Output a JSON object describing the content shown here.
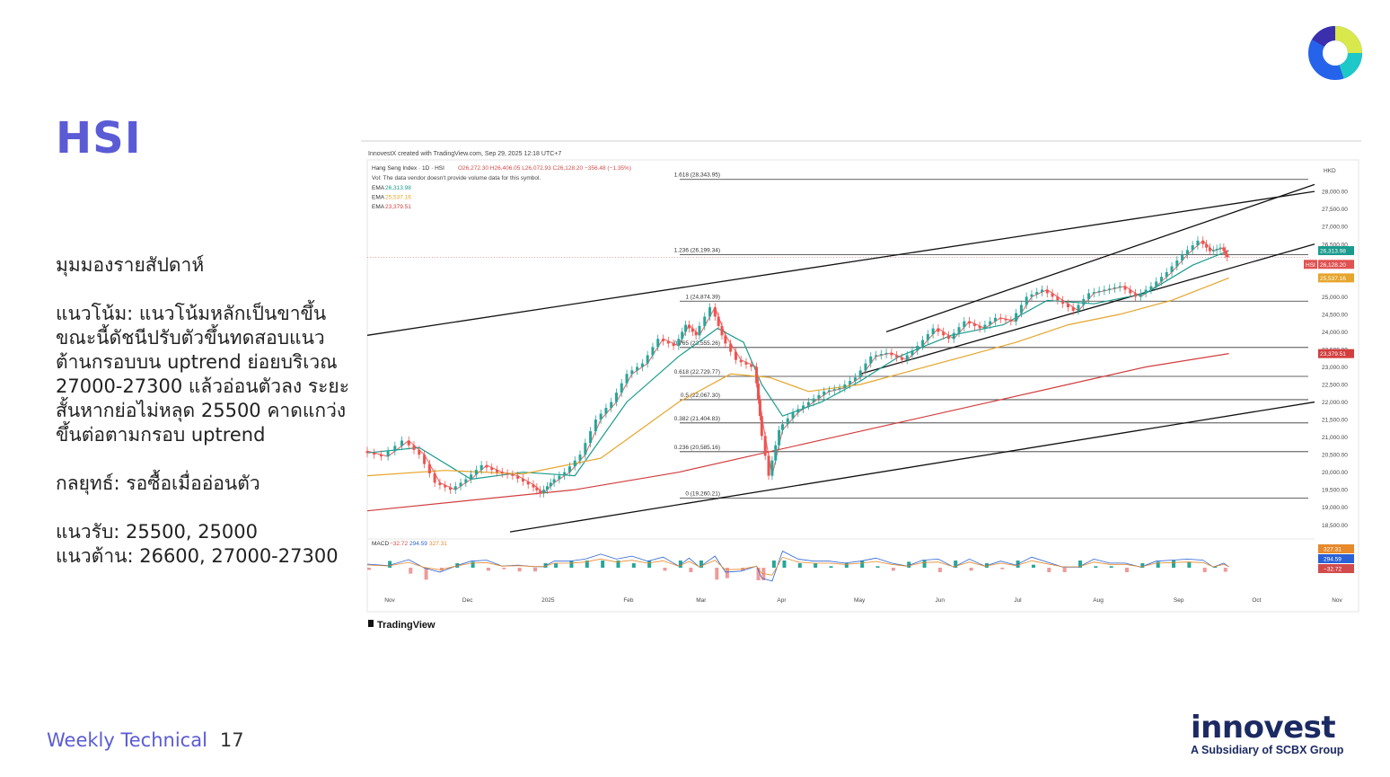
{
  "slide": {
    "title": "HSI",
    "commentary": {
      "heading": "มุมมองรายสัปดาห์",
      "trend": "แนวโน้ม: แนวโน้มหลักเป็นขาขึ้น ขณะนี้ดัชนีปรับตัวขึ้นทดสอบแนวต้านกรอบบน uptrend ย่อยบริเวณ 27000-27300 แล้วอ่อนตัวลง ระยะสั้นหากย่อไม่หลุด 25500 คาดแกว่งขึ้นต่อตามกรอบ uptrend",
      "strategy": "กลยุทธ์: รอซื้อเมื่ออ่อนตัว",
      "support": "แนวรับ: 25500, 25000",
      "resistance": "แนวต้าน: 26600, 27000-27300"
    },
    "footer": {
      "section": "Weekly Technical",
      "page": "17"
    },
    "brand": {
      "name": "innovest",
      "subtitle": "A Subsidiary of SCBX Group"
    }
  },
  "chart_data": {
    "type": "line",
    "header": "InnovestX created with TradingView.com, Sep 29, 2025 12:18 UTC+7",
    "legend_line": "Hang Seng Index · 1D · HSI",
    "ohlc": "O26,272.30 H26,406.05 L26,072.93 C26,128.20 −356.48 (−1.35%)",
    "vol_note": "Vol: The data vendor doesn't provide volume data for this symbol.",
    "currency": "HKD",
    "watermark": "TradingView",
    "ylim": [
      18200,
      28900
    ],
    "y_ticks": [
      "28,000.00",
      "27,500.00",
      "27,000.00",
      "26,500.00",
      "26,000.00",
      "25,500.00",
      "25,000.00",
      "24,500.00",
      "24,000.00",
      "23,500.00",
      "23,000.00",
      "22,500.00",
      "22,000.00",
      "21,500.00",
      "21,000.00",
      "20,500.00",
      "20,000.00",
      "19,500.00",
      "19,000.00",
      "18,500.00"
    ],
    "x_ticks": [
      "Nov",
      "Dec",
      "2025",
      "Feb",
      "Mar",
      "Apr",
      "May",
      "Jun",
      "Jul",
      "Aug",
      "Sep",
      "Oct",
      "Nov"
    ],
    "x_tick_days": [
      0,
      30,
      61,
      92,
      120,
      151,
      181,
      212,
      242,
      273,
      304,
      334,
      365
    ],
    "last_day": 332,
    "series": [
      {
        "name": "HSI",
        "role": "price",
        "last_label": "26,128.20",
        "color": "#e05252",
        "points": [
          [
            0,
            20600
          ],
          [
            8,
            20450
          ],
          [
            16,
            20900
          ],
          [
            22,
            20500
          ],
          [
            28,
            19700
          ],
          [
            34,
            19500
          ],
          [
            40,
            19800
          ],
          [
            46,
            20200
          ],
          [
            52,
            20000
          ],
          [
            58,
            19900
          ],
          [
            64,
            19650
          ],
          [
            68,
            19400
          ],
          [
            72,
            19700
          ],
          [
            78,
            20000
          ],
          [
            84,
            20500
          ],
          [
            90,
            21500
          ],
          [
            96,
            22000
          ],
          [
            102,
            22800
          ],
          [
            108,
            23100
          ],
          [
            114,
            23800
          ],
          [
            120,
            23600
          ],
          [
            124,
            24200
          ],
          [
            128,
            23900
          ],
          [
            134,
            24700
          ],
          [
            138,
            23900
          ],
          [
            144,
            23200
          ],
          [
            150,
            23000
          ],
          [
            152,
            21600
          ],
          [
            156,
            19900
          ],
          [
            160,
            21200
          ],
          [
            166,
            21700
          ],
          [
            172,
            22000
          ],
          [
            178,
            22300
          ],
          [
            184,
            22400
          ],
          [
            190,
            22700
          ],
          [
            196,
            23300
          ],
          [
            202,
            23400
          ],
          [
            208,
            23200
          ],
          [
            214,
            23600
          ],
          [
            220,
            24100
          ],
          [
            226,
            23800
          ],
          [
            232,
            24300
          ],
          [
            238,
            24100
          ],
          [
            244,
            24400
          ],
          [
            250,
            24300
          ],
          [
            256,
            25000
          ],
          [
            262,
            25200
          ],
          [
            268,
            24900
          ],
          [
            274,
            24600
          ],
          [
            280,
            25100
          ],
          [
            286,
            25200
          ],
          [
            292,
            25300
          ],
          [
            298,
            25000
          ],
          [
            304,
            25300
          ],
          [
            310,
            25700
          ],
          [
            316,
            26200
          ],
          [
            322,
            26600
          ],
          [
            326,
            26300
          ],
          [
            330,
            26400
          ],
          [
            332,
            26128
          ]
        ]
      },
      {
        "name": "EMA",
        "role": "ema-fast",
        "value": "26,313.98",
        "color": "#1a9b8e",
        "points": [
          [
            0,
            20550
          ],
          [
            20,
            20700
          ],
          [
            40,
            19800
          ],
          [
            60,
            20000
          ],
          [
            80,
            19900
          ],
          [
            100,
            22000
          ],
          [
            120,
            23300
          ],
          [
            135,
            24100
          ],
          [
            145,
            23700
          ],
          [
            152,
            22500
          ],
          [
            160,
            21600
          ],
          [
            175,
            22000
          ],
          [
            190,
            22600
          ],
          [
            205,
            23300
          ],
          [
            225,
            23900
          ],
          [
            245,
            24200
          ],
          [
            262,
            24900
          ],
          [
            280,
            24800
          ],
          [
            300,
            25100
          ],
          [
            318,
            25900
          ],
          [
            332,
            26314
          ]
        ]
      },
      {
        "name": "EMA",
        "role": "ema-mid",
        "value": "25,537.16",
        "color": "#e6a52c",
        "points": [
          [
            0,
            19900
          ],
          [
            30,
            20050
          ],
          [
            60,
            19950
          ],
          [
            90,
            20400
          ],
          [
            120,
            22000
          ],
          [
            140,
            22800
          ],
          [
            155,
            22700
          ],
          [
            170,
            22300
          ],
          [
            190,
            22500
          ],
          [
            210,
            22900
          ],
          [
            230,
            23300
          ],
          [
            250,
            23700
          ],
          [
            270,
            24200
          ],
          [
            290,
            24500
          ],
          [
            310,
            24900
          ],
          [
            332,
            25537
          ]
        ]
      },
      {
        "name": "EMA",
        "role": "ema-slow",
        "value": "23,379.51",
        "color": "#d23e3e",
        "points": [
          [
            0,
            18900
          ],
          [
            40,
            19200
          ],
          [
            80,
            19500
          ],
          [
            120,
            20000
          ],
          [
            150,
            20500
          ],
          [
            180,
            21000
          ],
          [
            210,
            21500
          ],
          [
            240,
            22000
          ],
          [
            270,
            22500
          ],
          [
            300,
            23000
          ],
          [
            332,
            23380
          ]
        ]
      }
    ],
    "fib_levels": [
      {
        "label": "1.618 (28,343.95)",
        "value": 28344
      },
      {
        "label": "1.236 (26,199.34)",
        "value": 26199
      },
      {
        "label": "1 (24,874.39)",
        "value": 24874
      },
      {
        "label": "0.765 (23,555.26)",
        "value": 23555
      },
      {
        "label": "0.618 (22,729.77)",
        "value": 22730
      },
      {
        "label": "0.5 (22,067.30)",
        "value": 22067
      },
      {
        "label": "0.382 (21,404.83)",
        "value": 21405
      },
      {
        "label": "0.236 (20,585.16)",
        "value": 20585
      },
      {
        "label": "0 (19,260.21)",
        "value": 19260
      }
    ],
    "trendlines": [
      {
        "from": [
          0,
          23900
        ],
        "to": [
          365,
          28000
        ]
      },
      {
        "from": [
          200,
          24000
        ],
        "to": [
          365,
          28200
        ]
      },
      {
        "from": [
          190,
          22800
        ],
        "to": [
          365,
          26500
        ]
      },
      {
        "from": [
          55,
          18300
        ],
        "to": [
          365,
          22000
        ]
      }
    ],
    "macd": {
      "label": "MACD",
      "values": [
        "−32.72",
        "294.59",
        "327.31"
      ]
    }
  }
}
